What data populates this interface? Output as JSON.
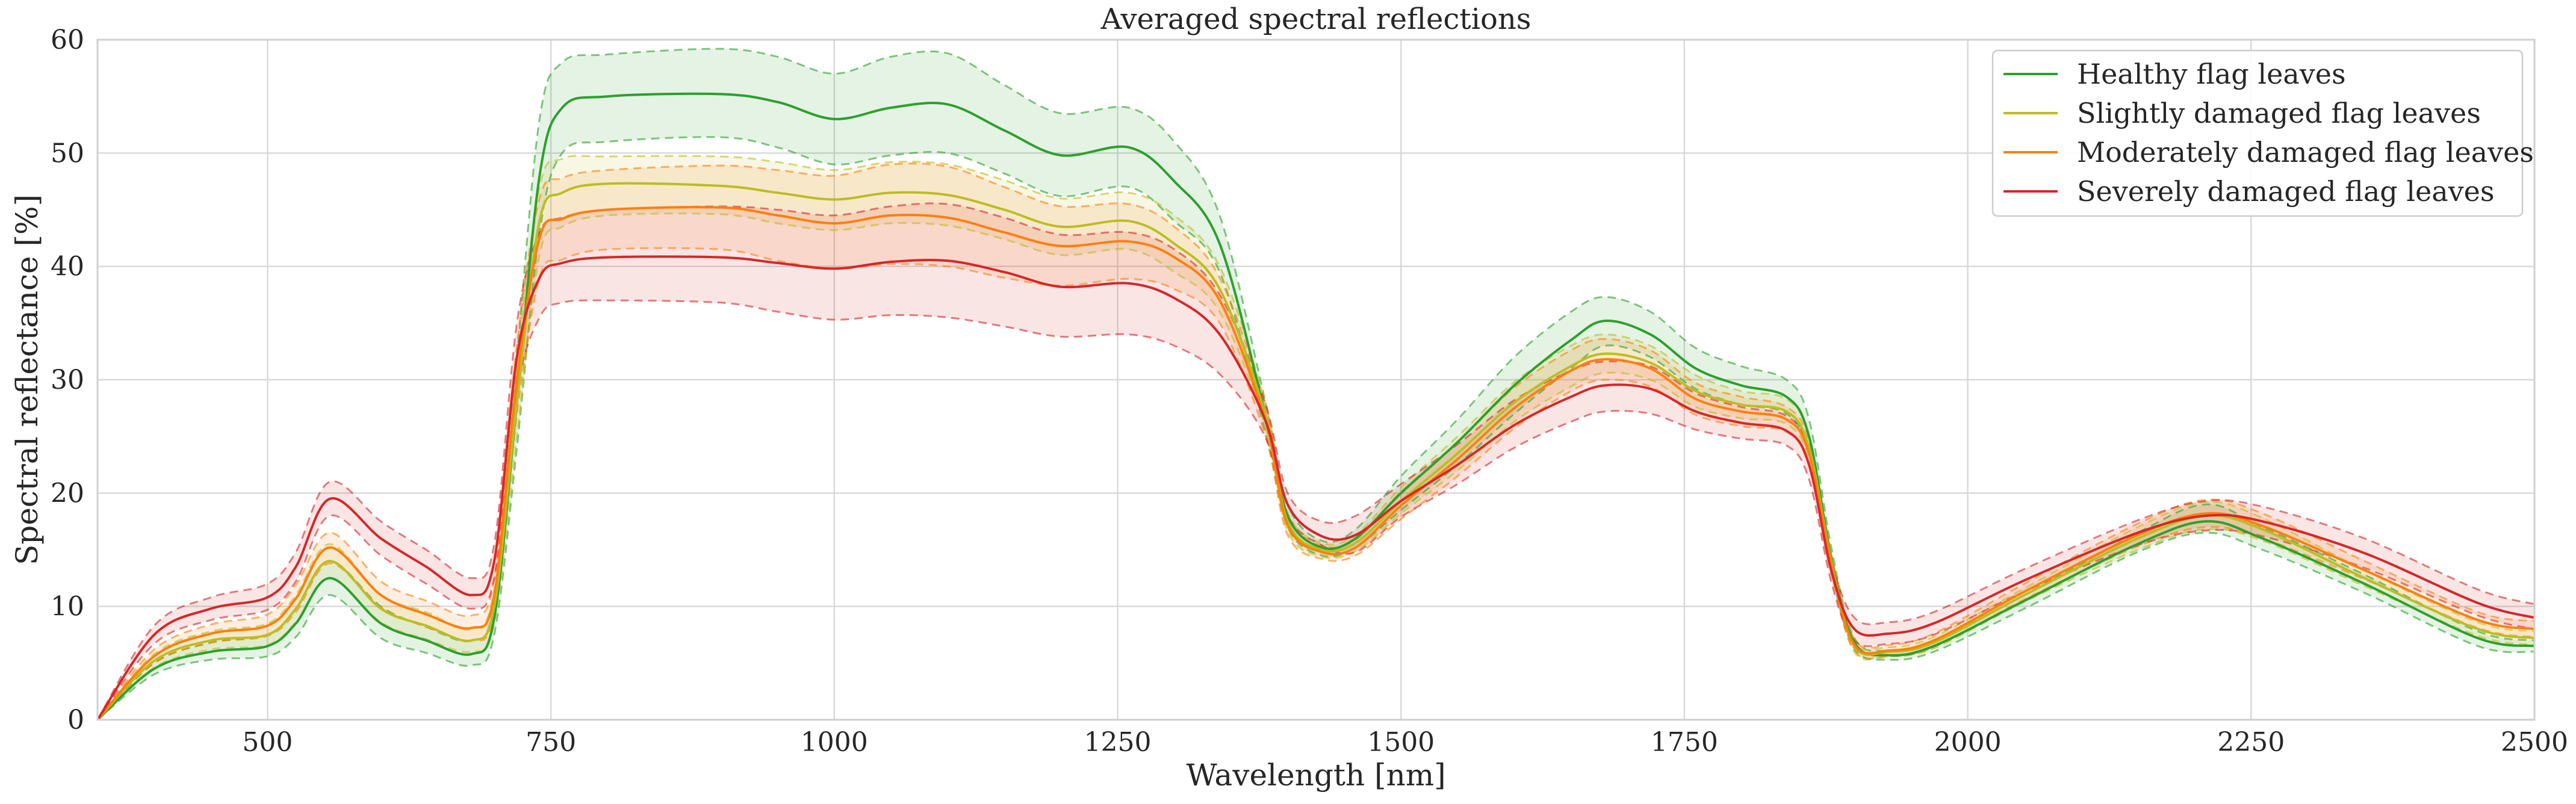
{
  "chart_data": {
    "type": "line",
    "title": "Averaged spectral reflections",
    "xlabel": "Wavelength [nm]",
    "ylabel": "Spectral reflectance [%]",
    "xlim": [
      350,
      2500
    ],
    "ylim": [
      0,
      60
    ],
    "xticks": [
      500,
      750,
      1000,
      1250,
      1500,
      1750,
      2000,
      2250,
      2500
    ],
    "xtick_labels": [
      "500",
      "750",
      "1000",
      "1250",
      "1500",
      "1750",
      "2000",
      "2250",
      "2500"
    ],
    "yticks": [
      0,
      10,
      20,
      30,
      40,
      50,
      60
    ],
    "ytick_labels": [
      "0",
      "10",
      "20",
      "30",
      "40",
      "50",
      "60"
    ],
    "grid": true,
    "legend_position": "top-right",
    "x": [
      350,
      400,
      450,
      500,
      525,
      555,
      600,
      640,
      680,
      700,
      720,
      740,
      760,
      800,
      900,
      950,
      1000,
      1050,
      1100,
      1150,
      1200,
      1260,
      1300,
      1340,
      1380,
      1400,
      1430,
      1460,
      1500,
      1550,
      1600,
      1650,
      1680,
      1720,
      1760,
      1800,
      1840,
      1860,
      1880,
      1900,
      1930,
      1970,
      2050,
      2150,
      2210,
      2260,
      2350,
      2450,
      2500
    ],
    "series": [
      {
        "name": "Healthy flag leaves",
        "color": "#2ca02c",
        "mean": [
          0,
          4.5,
          6,
          6.5,
          8.5,
          12.5,
          8.5,
          7,
          5.8,
          9,
          28,
          48,
          54,
          55,
          55.2,
          54.5,
          53,
          54,
          54.3,
          52,
          49.8,
          50.5,
          47.5,
          42,
          27,
          18,
          15.2,
          16,
          20,
          24.5,
          29.5,
          33.5,
          35.2,
          34,
          31,
          29.5,
          28.5,
          25,
          14,
          6.8,
          5.7,
          6.5,
          10.5,
          15.5,
          17.5,
          16,
          12,
          7.2,
          6.5
        ],
        "upper": [
          0,
          5,
          6.8,
          7.5,
          9.8,
          14,
          10,
          8.2,
          7,
          10.5,
          32,
          53,
          58,
          58.7,
          59.2,
          58.5,
          57,
          58.5,
          58.8,
          56,
          53.5,
          54,
          51,
          44.5,
          28.2,
          19,
          15.8,
          16.8,
          21.5,
          26.5,
          32,
          36,
          37.3,
          36,
          32.8,
          31.2,
          30,
          26.5,
          15,
          7.2,
          6.1,
          7,
          11,
          16.5,
          19,
          17,
          12.8,
          7.8,
          7
        ],
        "lower": [
          0,
          4,
          5.3,
          5.6,
          7.3,
          11,
          7.2,
          5.9,
          4.8,
          7.5,
          24,
          43,
          50,
          51,
          51.4,
          50.5,
          49,
          49.8,
          50,
          48.2,
          46.2,
          47,
          44,
          39.5,
          25.5,
          17,
          14.5,
          15.2,
          18.5,
          22.5,
          27,
          31,
          33,
          32,
          29.2,
          27.8,
          27,
          23.5,
          13,
          6.3,
          5.3,
          6,
          9.8,
          14.8,
          16.5,
          15,
          11.2,
          6.5,
          6
        ]
      },
      {
        "name": "Slightly damaged flag leaves",
        "color": "#bcbd22",
        "mean": [
          0,
          5.2,
          7,
          7.5,
          9.8,
          14,
          9.8,
          8.3,
          7,
          10,
          28,
          44,
          46.5,
          47.3,
          47.1,
          46.5,
          45.9,
          46.5,
          46.3,
          45,
          43.5,
          44,
          42,
          38,
          27,
          17.5,
          15,
          15.6,
          19.3,
          23.5,
          28,
          31.2,
          32.3,
          31.5,
          29,
          27.8,
          27.2,
          24,
          13.8,
          6.5,
          6,
          6.8,
          11,
          16,
          18,
          16.8,
          12.5,
          8,
          7.2
        ],
        "upper": [
          0,
          5.8,
          7.8,
          8.5,
          11,
          15.5,
          11,
          9.5,
          8,
          11.5,
          31,
          47,
          49.5,
          49.7,
          49.7,
          49.2,
          48.5,
          49.2,
          49,
          47.6,
          46,
          46.5,
          44.5,
          40,
          28,
          18.3,
          15.6,
          16.3,
          20.5,
          25,
          29.8,
          33,
          34,
          33,
          30.4,
          29,
          28.3,
          25,
          14.6,
          7,
          6.4,
          7.3,
          11.6,
          17,
          19.2,
          17.8,
          13.2,
          8.6,
          7.8
        ],
        "lower": [
          0,
          4.6,
          6.2,
          6.6,
          8.6,
          12.5,
          8.6,
          7.1,
          6,
          8.5,
          25,
          41,
          43.5,
          44.5,
          44.6,
          43.8,
          43.2,
          43.8,
          43.6,
          42.4,
          41,
          41.5,
          39.5,
          36,
          26,
          16.7,
          14.4,
          14.9,
          18.2,
          22,
          26.3,
          29.4,
          30.6,
          30,
          27.6,
          26.6,
          26.1,
          23,
          13,
          6,
          5.6,
          6.3,
          10.4,
          15,
          16.8,
          15.8,
          11.8,
          7.4,
          6.6
        ]
      },
      {
        "name": "Moderately damaged flag leaves",
        "color": "#ff7f0e",
        "mean": [
          0,
          5.6,
          7.6,
          8.3,
          10.7,
          15.2,
          11,
          9.3,
          8.1,
          11,
          30,
          42.5,
          44.2,
          45,
          45.2,
          44.5,
          43.8,
          44.5,
          44.3,
          43,
          41.8,
          42.2,
          40.8,
          37,
          26.5,
          17.2,
          14.8,
          15.2,
          18.9,
          23,
          27.5,
          30.8,
          31.8,
          31,
          28.3,
          27.2,
          26.5,
          23.5,
          13.6,
          6.6,
          6.1,
          7,
          11.3,
          16.3,
          18.2,
          17.1,
          13.2,
          8.8,
          8
        ],
        "upper": [
          0,
          6.2,
          8.4,
          9.3,
          11.9,
          16.5,
          12.2,
          10.5,
          9.2,
          12.5,
          33,
          46,
          47.8,
          48.5,
          48.9,
          48.5,
          48,
          49,
          48.8,
          47,
          45.3,
          45.5,
          43.5,
          39,
          27.8,
          18.1,
          15.4,
          15.9,
          20.1,
          24.5,
          29.3,
          32.6,
          33.6,
          32.6,
          29.7,
          28.5,
          27.6,
          24.6,
          14.4,
          7.1,
          6.6,
          7.6,
          12,
          17.3,
          19.4,
          18.2,
          14,
          9.5,
          8.7
        ],
        "lower": [
          0,
          5,
          6.8,
          7.4,
          9.5,
          13.8,
          9.9,
          8.2,
          7,
          9.5,
          27,
          39,
          40.6,
          41.5,
          41.5,
          40.5,
          39.8,
          40.2,
          40,
          39,
          38.3,
          38.9,
          38,
          35,
          25.2,
          16.3,
          14.2,
          14.5,
          17.7,
          21.5,
          25.7,
          29,
          30,
          29.4,
          26.9,
          25.9,
          25.4,
          22.4,
          12.8,
          6.1,
          5.6,
          6.4,
          10.6,
          15.3,
          17,
          16,
          12.4,
          8.1,
          7.3
        ]
      },
      {
        "name": "Severely damaged flag leaves",
        "color": "#d62728",
        "mean": [
          0,
          7.5,
          9.8,
          10.8,
          13.5,
          19.5,
          16,
          13.5,
          11,
          14,
          32,
          39,
          40.3,
          40.8,
          40.8,
          40.3,
          39.8,
          40.4,
          40.5,
          39.5,
          38.2,
          38.5,
          37.2,
          34,
          26.5,
          19,
          16.2,
          16.3,
          19.3,
          22.5,
          26,
          28.5,
          29.5,
          29.2,
          27.2,
          26.2,
          25.5,
          22.5,
          13,
          8,
          7.6,
          8.5,
          12.3,
          16.5,
          18,
          17.5,
          14.7,
          10.3,
          9
        ],
        "upper": [
          0,
          8.3,
          10.8,
          12,
          14.8,
          21,
          17.5,
          15,
          12.5,
          15.5,
          35,
          43,
          44.3,
          45,
          45.3,
          45,
          44.5,
          45.3,
          45.5,
          44.3,
          42.8,
          43,
          41.5,
          37.5,
          28,
          20,
          17.5,
          18,
          20.8,
          24.3,
          28.2,
          30.8,
          31.6,
          31.2,
          28.8,
          27.6,
          26.8,
          23.8,
          14,
          9,
          8.6,
          9.5,
          13.3,
          17.6,
          19.3,
          18.8,
          16,
          11.5,
          10.2
        ],
        "lower": [
          0,
          6.7,
          8.8,
          9.7,
          12.2,
          18,
          14.5,
          12,
          9.8,
          12.5,
          29,
          35.5,
          36.8,
          37,
          36.8,
          36,
          35.3,
          35.7,
          35.5,
          34.7,
          33.8,
          34,
          33,
          30.5,
          25,
          18,
          15.4,
          14.8,
          17.9,
          20.8,
          24,
          26.3,
          27.2,
          27,
          25.6,
          24.8,
          24.2,
          21.2,
          12,
          7,
          6.7,
          7.5,
          11.3,
          15.4,
          16.7,
          16.2,
          13.4,
          9.2,
          8
        ]
      }
    ]
  }
}
